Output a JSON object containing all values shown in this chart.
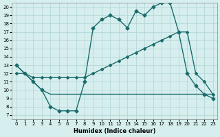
{
  "xlabel": "Humidex (Indice chaleur)",
  "bg_color": "#d6eeee",
  "line_color": "#1a6b6b",
  "xlim": [
    -0.5,
    23.5
  ],
  "ylim": [
    6.5,
    20.5
  ],
  "xticks": [
    0,
    1,
    2,
    3,
    4,
    5,
    6,
    7,
    8,
    9,
    10,
    11,
    12,
    13,
    14,
    15,
    16,
    17,
    18,
    19,
    20,
    21,
    22,
    23
  ],
  "yticks": [
    7,
    8,
    9,
    10,
    11,
    12,
    13,
    14,
    15,
    16,
    17,
    18,
    19,
    20
  ],
  "curve1_x": [
    0,
    1,
    2,
    3,
    4,
    5,
    6,
    7,
    8,
    9,
    10,
    11,
    12,
    13,
    14,
    15,
    16,
    17,
    18,
    19,
    20,
    21,
    22,
    23
  ],
  "curve1_y": [
    13,
    12,
    11,
    10,
    8,
    7.5,
    7.5,
    7.5,
    11,
    17.5,
    18.5,
    19,
    18.5,
    17.5,
    19.5,
    19,
    20,
    20.5,
    20.5,
    17,
    12,
    10.5,
    9.5,
    9
  ],
  "curve2_x": [
    0,
    1,
    2,
    3,
    4,
    5,
    6,
    7,
    8,
    9,
    10,
    11,
    12,
    13,
    14,
    15,
    16,
    17,
    18,
    19,
    20,
    21,
    22,
    23
  ],
  "curve2_y": [
    13,
    12,
    11,
    10,
    9.5,
    9.5,
    9.5,
    9.5,
    9.5,
    9.5,
    9.5,
    9.5,
    9.5,
    9.5,
    9.5,
    9.5,
    9.5,
    9.5,
    9.5,
    9.5,
    9.5,
    9.5,
    9.5,
    9.5
  ],
  "curve3_x": [
    0,
    1,
    2,
    3,
    4,
    5,
    6,
    7,
    8,
    9,
    10,
    11,
    12,
    13,
    14,
    15,
    16,
    17,
    18,
    19,
    20,
    21,
    22,
    23
  ],
  "curve3_y": [
    12,
    12,
    11.5,
    11.5,
    11.5,
    11.5,
    11.5,
    11.5,
    11.5,
    12,
    12.5,
    13,
    13.5,
    14,
    14.5,
    15,
    15.5,
    16,
    16.5,
    17,
    17,
    12,
    11,
    9.5
  ]
}
